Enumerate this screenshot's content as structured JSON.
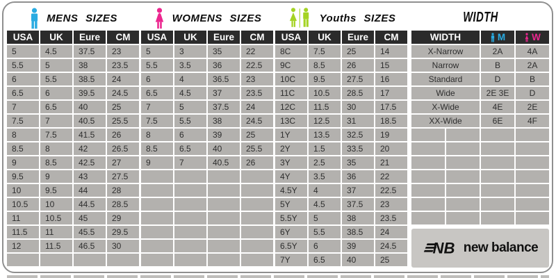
{
  "colors": {
    "men_blue": "#29ABE2",
    "women_pink": "#EC268F",
    "youth_green": "#A4D324",
    "header_bg": "#2B2B2B",
    "cell_bg": "#B3B1AE",
    "logo_band": "#C8C6C3"
  },
  "brand": {
    "monogram": "NB",
    "name": "new balance"
  },
  "chart_data": [
    {
      "type": "table",
      "title": "MENS SIZES",
      "icon": "man-icon",
      "columns": [
        "USA",
        "UK",
        "Eure",
        "CM"
      ],
      "rows": [
        [
          "5",
          "4.5",
          "37.5",
          "23"
        ],
        [
          "5.5",
          "5",
          "38",
          "23.5"
        ],
        [
          "6",
          "5.5",
          "38.5",
          "24"
        ],
        [
          "6.5",
          "6",
          "39.5",
          "24.5"
        ],
        [
          "7",
          "6.5",
          "40",
          "25"
        ],
        [
          "7.5",
          "7",
          "40.5",
          "25.5"
        ],
        [
          "8",
          "7.5",
          "41.5",
          "26"
        ],
        [
          "8.5",
          "8",
          "42",
          "26.5"
        ],
        [
          "9",
          "8.5",
          "42.5",
          "27"
        ],
        [
          "9.5",
          "9",
          "43",
          "27.5"
        ],
        [
          "10",
          "9.5",
          "44",
          "28"
        ],
        [
          "10.5",
          "10",
          "44.5",
          "28.5"
        ],
        [
          "11",
          "10.5",
          "45",
          "29"
        ],
        [
          "11.5",
          "11",
          "45.5",
          "29.5"
        ],
        [
          "12",
          "11.5",
          "46.5",
          "30"
        ]
      ],
      "empty_rows": 1
    },
    {
      "type": "table",
      "title": "WOMENS SIZES",
      "icon": "woman-icon",
      "columns": [
        "USA",
        "UK",
        "Eure",
        "CM"
      ],
      "rows": [
        [
          "5",
          "3",
          "35",
          "22"
        ],
        [
          "5.5",
          "3.5",
          "36",
          "22.5"
        ],
        [
          "6",
          "4",
          "36.5",
          "23"
        ],
        [
          "6.5",
          "4.5",
          "37",
          "23.5"
        ],
        [
          "7",
          "5",
          "37.5",
          "24"
        ],
        [
          "7.5",
          "5.5",
          "38",
          "24.5"
        ],
        [
          "8",
          "6",
          "39",
          "25"
        ],
        [
          "8.5",
          "6.5",
          "40",
          "25.5"
        ],
        [
          "9",
          "7",
          "40.5",
          "26"
        ]
      ],
      "empty_rows": 7
    },
    {
      "type": "table",
      "title": "Youths SIZES",
      "icon": "girl-and-boy-icon",
      "columns": [
        "USA",
        "UK",
        "Eure",
        "CM"
      ],
      "rows": [
        [
          "8C",
          "7.5",
          "25",
          "14"
        ],
        [
          "9C",
          "8.5",
          "26",
          "15"
        ],
        [
          "10C",
          "9.5",
          "27.5",
          "16"
        ],
        [
          "11C",
          "10.5",
          "28.5",
          "17"
        ],
        [
          "12C",
          "11.5",
          "30",
          "17.5"
        ],
        [
          "13C",
          "12.5",
          "31",
          "18.5"
        ],
        [
          "1Y",
          "13.5",
          "32.5",
          "19"
        ],
        [
          "2Y",
          "1.5",
          "33.5",
          "20"
        ],
        [
          "3Y",
          "2.5",
          "35",
          "21"
        ],
        [
          "4Y",
          "3.5",
          "36",
          "22"
        ],
        [
          "4.5Y",
          "4",
          "37",
          "22.5"
        ],
        [
          "5Y",
          "4.5",
          "37.5",
          "23"
        ],
        [
          "5.5Y",
          "5",
          "38",
          "23.5"
        ],
        [
          "6Y",
          "5.5",
          "38.5",
          "24"
        ],
        [
          "6.5Y",
          "6",
          "39",
          "24.5"
        ],
        [
          "7Y",
          "6.5",
          "40",
          "25"
        ]
      ],
      "empty_rows": 0
    },
    {
      "type": "table",
      "title": "WIDTH",
      "columns": [
        "WIDTH",
        "M",
        "W"
      ],
      "rows": [
        [
          "X-Narrow",
          "2A",
          "4A"
        ],
        [
          "Narrow",
          "B",
          "2A"
        ],
        [
          "Standard",
          "D",
          "B"
        ],
        [
          "Wide",
          "2E 3E",
          "D"
        ],
        [
          "X-Wide",
          "4E",
          "2E"
        ],
        [
          "XX-Wide",
          "6E",
          "4F"
        ]
      ],
      "empty_rows": 7
    }
  ]
}
